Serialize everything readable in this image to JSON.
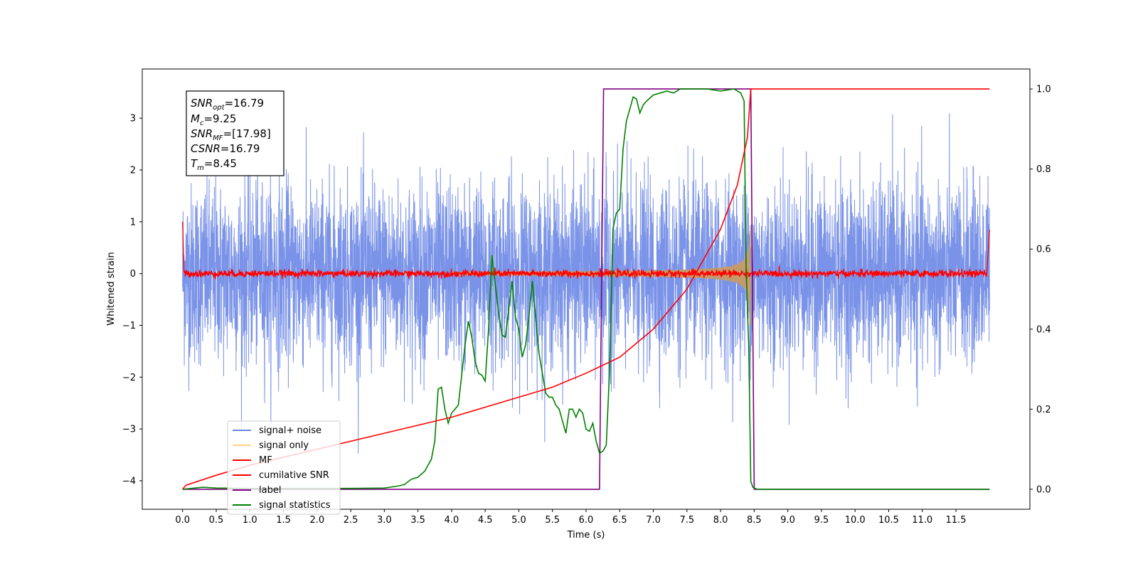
{
  "chart_data": {
    "type": "line",
    "xlabel": "Time (s)",
    "ylabel": "Whitened strain",
    "xlim": [
      -0.6,
      12.6
    ],
    "ylim": [
      -4.55,
      3.95
    ],
    "ylim_right": [
      -0.05,
      1.05
    ],
    "x_ticks": [
      "0.0",
      "0.5",
      "1.0",
      "1.5",
      "2.0",
      "2.5",
      "3.0",
      "3.5",
      "4.0",
      "4.5",
      "5.0",
      "5.5",
      "6.0",
      "6.5",
      "7.0",
      "7.5",
      "8.0",
      "8.5",
      "9.0",
      "9.5",
      "10.0",
      "10.5",
      "11.0",
      "11.5"
    ],
    "y_ticks": [
      "3",
      "2",
      "1",
      "0",
      "−1",
      "−2",
      "−3",
      "−4"
    ],
    "y_right_ticks": [
      "1.0",
      "0.8",
      "0.6",
      "0.4",
      "0.2",
      "0.0"
    ],
    "grid": false,
    "legend_position": "lower-left",
    "legend": [
      "signal+ noise",
      "signal only",
      "MF",
      "cumilative SNR",
      "label",
      "signal statistics"
    ],
    "annotation": {
      "snr_opt": {
        "label": "SNR",
        "sub": "opt",
        "value": "=16.79"
      },
      "mc": {
        "label": "M",
        "sub": "c",
        "value": "=9.25"
      },
      "snr_mf": {
        "label": "SNR",
        "sub": "MF",
        "value": "=[17.98]"
      },
      "csnr": {
        "label": "CSNR",
        "value": "=16.79"
      },
      "tm": {
        "label": "T",
        "sub": "m",
        "value": "=8.45"
      }
    },
    "series": [
      {
        "name": "signal+ noise",
        "color": "#6b87e6",
        "axis": "left",
        "description": "whitened noise, amplitude ~1.2 sd, spans 0 to 12 s",
        "duration": 12.0,
        "amplitude_sd": 1.2
      },
      {
        "name": "signal only",
        "color": "#c49a6c",
        "axis": "left",
        "description": "chirp growing until merger at 8.45 s",
        "merger_time": 8.45,
        "peak_amplitude": 1.0
      },
      {
        "name": "MF",
        "color": "#ff0000",
        "axis": "left",
        "description": "matched filter output near 0",
        "start": 1.0,
        "end": 0.85
      },
      {
        "name": "cumilative SNR",
        "color": "#ff0000",
        "axis": "right",
        "x": [
          0.0,
          0.05,
          0.5,
          1.0,
          2.0,
          3.0,
          4.0,
          5.0,
          5.5,
          6.0,
          6.5,
          7.0,
          7.5,
          8.0,
          8.25,
          8.4,
          8.45,
          12.0
        ],
        "y": [
          0.0,
          0.01,
          0.035,
          0.06,
          0.1,
          0.14,
          0.18,
          0.23,
          0.255,
          0.29,
          0.33,
          0.4,
          0.5,
          0.65,
          0.76,
          0.88,
          1.0,
          1.0
        ]
      },
      {
        "name": "label",
        "color": "#800080",
        "axis": "right",
        "x": [
          0.0,
          6.2,
          6.26,
          8.45,
          8.5,
          12.0
        ],
        "y": [
          0.0,
          0.0,
          1.0,
          1.0,
          0.0,
          0.0
        ]
      },
      {
        "name": "signal statistics",
        "color": "#008000",
        "axis": "right",
        "x": [
          0.0,
          0.3,
          0.5,
          1.0,
          2.0,
          2.5,
          3.0,
          3.2,
          3.3,
          3.4,
          3.5,
          3.6,
          3.7,
          3.75,
          3.8,
          3.85,
          3.9,
          3.95,
          4.0,
          4.1,
          4.2,
          4.25,
          4.3,
          4.35,
          4.4,
          4.45,
          4.5,
          4.55,
          4.6,
          4.65,
          4.7,
          4.75,
          4.8,
          4.85,
          4.9,
          4.95,
          5.0,
          5.05,
          5.1,
          5.15,
          5.2,
          5.25,
          5.3,
          5.35,
          5.4,
          5.45,
          5.5,
          5.55,
          5.6,
          5.65,
          5.7,
          5.75,
          5.8,
          5.85,
          5.9,
          5.95,
          6.0,
          6.05,
          6.1,
          6.15,
          6.2,
          6.25,
          6.3,
          6.35,
          6.4,
          6.45,
          6.5,
          6.55,
          6.6,
          6.65,
          6.7,
          6.75,
          6.8,
          6.85,
          6.9,
          7.0,
          7.1,
          7.2,
          7.3,
          7.4,
          7.5,
          7.6,
          7.8,
          8.0,
          8.2,
          8.3,
          8.35,
          8.38,
          8.42,
          8.45,
          8.48,
          8.5,
          8.55,
          8.6,
          12.0
        ],
        "y": [
          0.0,
          0.005,
          0.003,
          0.002,
          0.002,
          0.002,
          0.003,
          0.008,
          0.012,
          0.025,
          0.03,
          0.045,
          0.075,
          0.12,
          0.25,
          0.255,
          0.2,
          0.165,
          0.19,
          0.21,
          0.36,
          0.42,
          0.38,
          0.32,
          0.29,
          0.285,
          0.27,
          0.4,
          0.585,
          0.51,
          0.44,
          0.385,
          0.38,
          0.45,
          0.52,
          0.43,
          0.4,
          0.33,
          0.36,
          0.43,
          0.52,
          0.43,
          0.34,
          0.29,
          0.24,
          0.23,
          0.23,
          0.21,
          0.2,
          0.17,
          0.14,
          0.2,
          0.2,
          0.18,
          0.2,
          0.19,
          0.15,
          0.145,
          0.165,
          0.12,
          0.09,
          0.095,
          0.11,
          0.3,
          0.65,
          0.69,
          0.7,
          0.85,
          0.92,
          0.95,
          0.98,
          0.975,
          0.94,
          0.96,
          0.97,
          0.985,
          0.99,
          0.995,
          0.99,
          1.0,
          1.0,
          1.0,
          1.0,
          0.995,
          1.0,
          0.99,
          0.97,
          0.55,
          0.35,
          0.02,
          0.005,
          0.003,
          0.0,
          0.0,
          0.0
        ]
      }
    ]
  }
}
